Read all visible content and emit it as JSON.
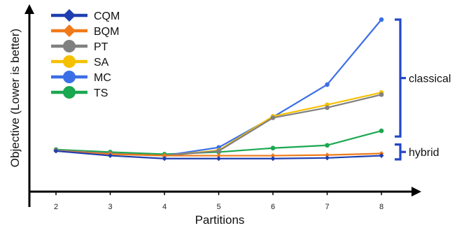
{
  "chart_data": {
    "type": "line",
    "title": "",
    "xlabel": "Partitions",
    "ylabel": "Objective (Lower is better)",
    "x": [
      2,
      3,
      4,
      5,
      6,
      7,
      8
    ],
    "ylim": [
      0,
      100
    ],
    "grid": false,
    "legend_position": "top-left",
    "series": [
      {
        "name": "CQM",
        "color": "#1f3fb0",
        "marker": "diamond",
        "values": [
          1.1,
          -2.4,
          -4.6,
          -4.6,
          -4.6,
          -4.1,
          -2.4
        ]
      },
      {
        "name": "BQM",
        "color": "#f07a1a",
        "marker": "diamond",
        "values": [
          1.1,
          -1.3,
          -2.4,
          -2.4,
          -2.4,
          -1.9,
          -0.8
        ]
      },
      {
        "name": "PT",
        "color": "#808080",
        "marker": "circle",
        "values": [
          1.6,
          -0.8,
          -2.4,
          1.1,
          26.1,
          33.7,
          43.5
        ]
      },
      {
        "name": "SA",
        "color": "#f5c000",
        "marker": "circle",
        "values": [
          1.6,
          -0.8,
          -2.4,
          1.6,
          27.2,
          35.9,
          45.1
        ]
      },
      {
        "name": "MC",
        "color": "#3b6fe6",
        "marker": "circle",
        "values": [
          1.6,
          -0.8,
          -2.4,
          3.8,
          26.6,
          51.1,
          100
        ]
      },
      {
        "name": "TS",
        "color": "#1aa850",
        "marker": "circle",
        "values": [
          2.2,
          0.3,
          -1.3,
          0.3,
          3.3,
          5.4,
          16.3
        ]
      }
    ],
    "brackets": [
      {
        "label": "classical",
        "range": [
          12.0,
          100
        ]
      },
      {
        "label": "hybrid",
        "range": [
          -5.2,
          6.0
        ]
      }
    ],
    "bracket_color": "#2347c8"
  }
}
